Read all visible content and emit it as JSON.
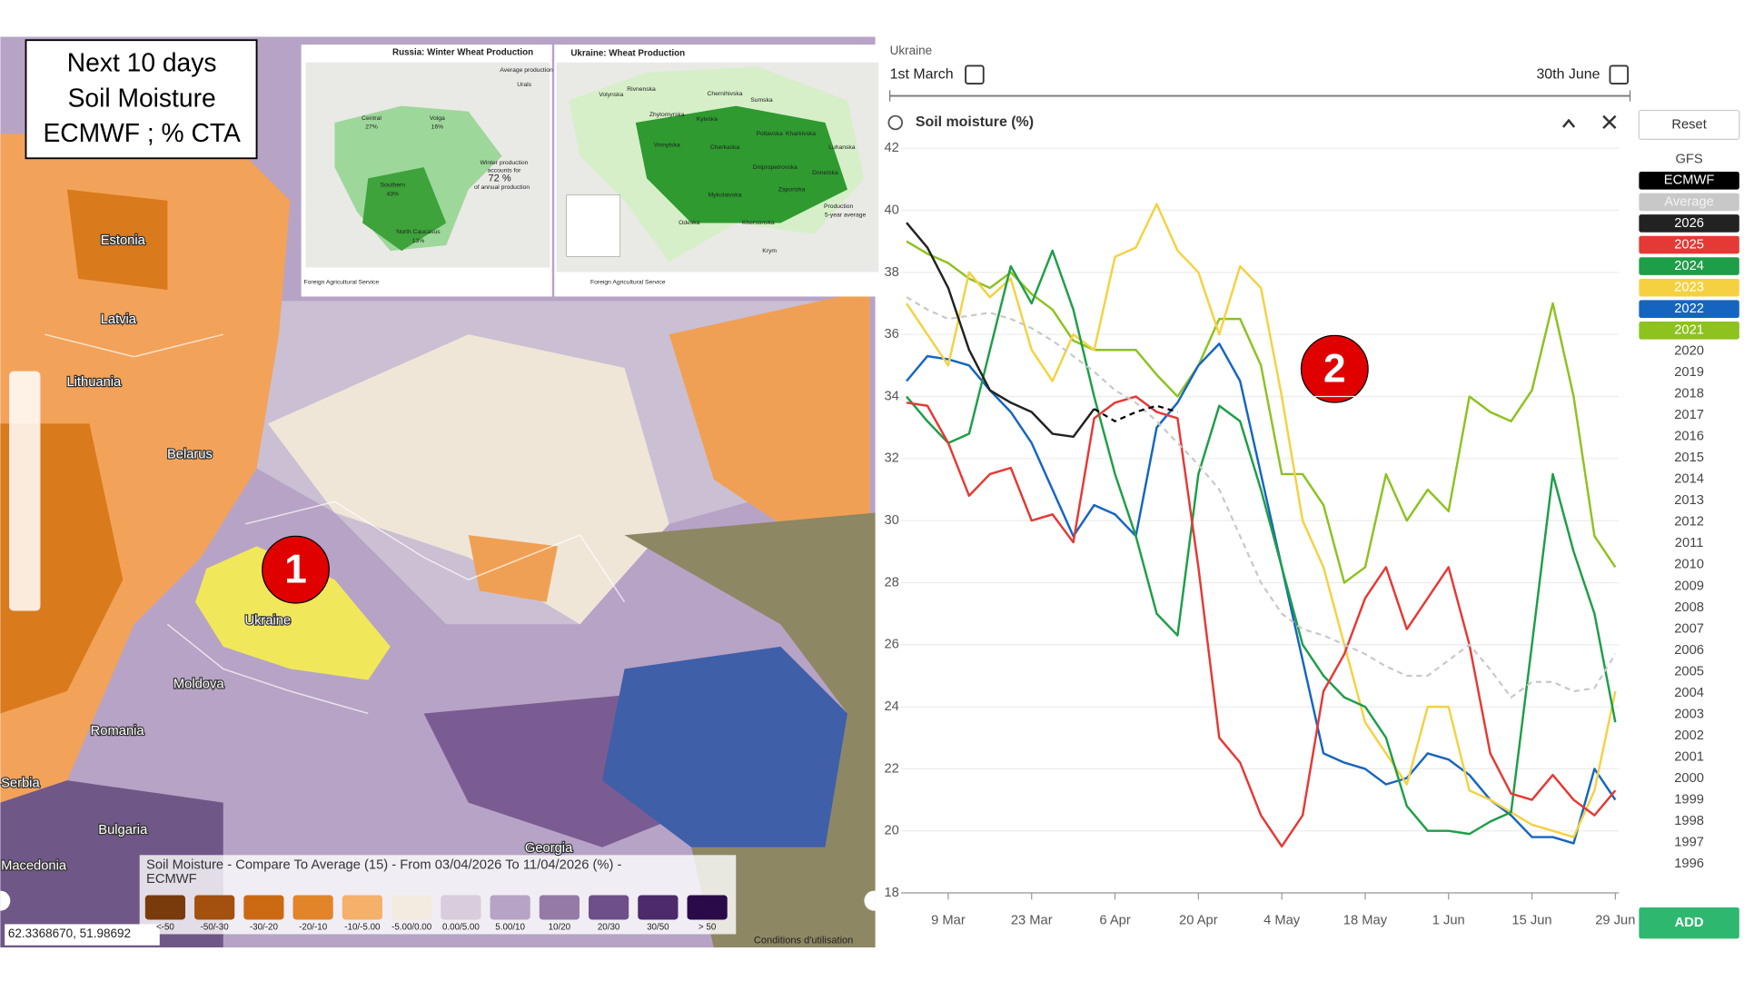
{
  "map": {
    "overlay_lines": [
      "Next 10 days",
      "Soil Moisture",
      "ECMWF ; % CTA"
    ],
    "places": [
      "Estonia",
      "Latvia",
      "Lithuania",
      "Belarus",
      "Ukraine",
      "Moldova",
      "Romania",
      "Serbia",
      "Bulgaria",
      "Macedonia",
      "Georgia"
    ],
    "inset_russia": {
      "title": "Russia: Winter Wheat Production",
      "labels": [
        "Average production",
        "Urals",
        "Central",
        "27%",
        "Volga",
        "16%",
        "Southern",
        "43%",
        "North Caucasus",
        "13%",
        "Winter production",
        "accounts for",
        "72 %",
        "of annual production",
        "Foreign Agricultural Service"
      ]
    },
    "inset_ukraine": {
      "title": "Ukraine: Wheat Production",
      "labels": [
        "Volynska",
        "Rivnenska",
        "Zhytomyrska",
        "Kyivska",
        "Chernihivska",
        "Sumska",
        "Poltavska",
        "Kharkivska",
        "Vinnytska",
        "Cherkaska",
        "Luhanska",
        "Donetska",
        "Odeska",
        "Mykolaivska",
        "Khersonska",
        "Zaporizka",
        "Dnipropetrovska",
        "Krym",
        "Production",
        "5-year average",
        "Foreign Agricultural Service"
      ]
    },
    "legend": {
      "title_lines": [
        "Soil Moisture - Compare To Average (15) - From 03/04/2026 To 11/04/2026 (%) -",
        "ECMWF"
      ],
      "classes": [
        "<-50",
        "-50/-30",
        "-30/-20",
        "-20/-10",
        "-10/-5.00",
        "-5.00/0.00",
        "0.00/5.00",
        "5.00/10",
        "10/20",
        "20/30",
        "30/50",
        "> 50"
      ],
      "colors": [
        "#7a3b0c",
        "#a4500f",
        "#cc6a14",
        "#e2852a",
        "#f5b06a",
        "#f3ebdf",
        "#d9ccdc",
        "#b7a3c6",
        "#957aa8",
        "#6f4f8a",
        "#4c2a6c",
        "#2b0a4a"
      ]
    },
    "coordinates": "62.3368670, 51.98692",
    "attribution": "Conditions d'utilisation",
    "markers": [
      "1",
      "2"
    ]
  },
  "controls": {
    "region": "Ukraine",
    "start": "1st March",
    "end": "30th June",
    "reset": "Reset",
    "gfs": "GFS",
    "other_years": [
      "2020",
      "2019",
      "2018",
      "2017",
      "2016",
      "2015",
      "2014",
      "2013",
      "2012",
      "2011",
      "2010",
      "2009",
      "2008",
      "2007",
      "2006",
      "2005",
      "2004",
      "2003",
      "2002",
      "2001",
      "2000",
      "1999",
      "1998",
      "1997",
      "1996"
    ],
    "add": "ADD"
  },
  "chart_data": {
    "type": "line",
    "title": "Soil moisture (%)",
    "categories": [
      null,
      null,
      "9 Mar",
      null,
      null,
      null,
      "23 Mar",
      null,
      null,
      null,
      "6 Apr",
      null,
      null,
      null,
      "20 Apr",
      null,
      null,
      null,
      "4 May",
      null,
      null,
      null,
      "18 May",
      null,
      null,
      null,
      "1 Jun",
      null,
      null,
      null,
      "15 Jun",
      null,
      null,
      null,
      "29 Jun"
    ],
    "ylim": [
      18,
      42
    ],
    "yticks": [
      18,
      20,
      22,
      24,
      26,
      28,
      30,
      32,
      34,
      36,
      38,
      40,
      42
    ],
    "grid": true,
    "series": [
      {
        "name": "ECMWF",
        "color": "#000000",
        "dashed": true,
        "values": [
          null,
          null,
          null,
          null,
          null,
          null,
          null,
          null,
          null,
          33.6,
          33.2,
          33.5,
          33.7,
          33.5,
          null,
          null,
          null,
          null,
          null,
          null,
          null,
          null,
          null,
          null,
          null,
          null,
          null,
          null,
          null,
          null,
          null,
          null,
          null,
          null,
          null
        ]
      },
      {
        "name": "Average",
        "color": "#c8c8c8",
        "dashed": true,
        "values": [
          37.2,
          36.8,
          36.5,
          36.6,
          36.7,
          36.5,
          36.2,
          35.8,
          35.3,
          34.8,
          34.2,
          33.8,
          33.2,
          32.5,
          31.8,
          31,
          29.5,
          28,
          27,
          26.5,
          26.3,
          26,
          25.7,
          25.3,
          25,
          25,
          25.5,
          26,
          25.2,
          24.3,
          24.8,
          24.8,
          24.5,
          24.6,
          25.7
        ]
      },
      {
        "name": "2026",
        "color": "#222222",
        "values": [
          39.6,
          38.8,
          37.5,
          35.5,
          34.2,
          33.8,
          33.5,
          32.8,
          32.7,
          33.6,
          null,
          null,
          null,
          null,
          null,
          null,
          null,
          null,
          null,
          null,
          null,
          null,
          null,
          null,
          null,
          null,
          null,
          null,
          null,
          null,
          null,
          null,
          null,
          null,
          null
        ]
      },
      {
        "name": "2025",
        "color": "#e53935",
        "values": [
          33.8,
          33.7,
          32.5,
          30.8,
          31.5,
          31.7,
          30,
          30.2,
          29.3,
          33.3,
          33.8,
          34,
          33.5,
          33.3,
          28.5,
          23,
          22.2,
          20.5,
          19.5,
          20.5,
          24.5,
          25.7,
          27.5,
          28.5,
          26.5,
          27.5,
          28.5,
          26,
          22.5,
          21.2,
          21,
          21.8,
          21,
          20.5,
          21.3
        ]
      },
      {
        "name": "2024",
        "color": "#1e9e48",
        "values": [
          34,
          33.2,
          32.5,
          32.8,
          35.5,
          38.2,
          37,
          38.7,
          36.8,
          34,
          31.5,
          29.5,
          27,
          26.3,
          31.5,
          33.7,
          33.2,
          31,
          28.5,
          26,
          25,
          24.3,
          24,
          23,
          20.8,
          20,
          20,
          19.9,
          20.3,
          20.6,
          26,
          31.5,
          29,
          27,
          23.5
        ]
      },
      {
        "name": "2023",
        "color": "#f5d142",
        "values": [
          37,
          36,
          35,
          38,
          37.2,
          37.8,
          35.5,
          34.5,
          36,
          35.5,
          38.5,
          38.8,
          40.2,
          38.7,
          38,
          36,
          38.2,
          37.5,
          34,
          30,
          28.5,
          26,
          23.5,
          22.5,
          21.5,
          24,
          24,
          21.3,
          21,
          20.6,
          20.2,
          20,
          19.8,
          21.3,
          24.5
        ]
      },
      {
        "name": "2022",
        "color": "#1565c0",
        "values": [
          34.5,
          35.3,
          35.2,
          35,
          34.2,
          33.5,
          32.5,
          31,
          29.5,
          30.5,
          30.2,
          29.5,
          33,
          33.8,
          35,
          35.7,
          34.5,
          31.5,
          28.5,
          25.5,
          22.5,
          22.2,
          22,
          21.5,
          21.7,
          22.5,
          22.3,
          21.8,
          21,
          20.5,
          19.8,
          19.8,
          19.6,
          22,
          21
        ]
      },
      {
        "name": "2021",
        "color": "#8dc21f",
        "values": [
          39,
          38.6,
          38.3,
          37.8,
          37.5,
          38,
          37.3,
          36.8,
          35.8,
          35.5,
          35.5,
          35.5,
          34.7,
          34,
          35,
          36.5,
          36.5,
          35,
          31.5,
          31.5,
          30.5,
          28,
          28.5,
          31.5,
          30,
          31,
          30.3,
          34,
          33.5,
          33.2,
          34.2,
          37,
          34,
          29.5,
          28.5
        ]
      }
    ]
  }
}
